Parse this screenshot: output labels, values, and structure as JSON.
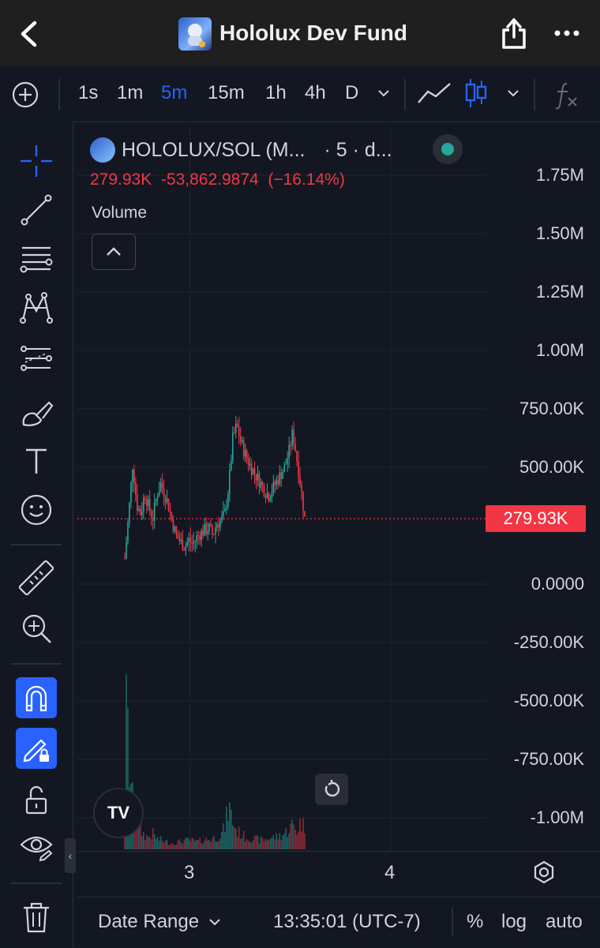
{
  "header": {
    "title": "Hololux Dev Fund",
    "icons": [
      "back-icon",
      "app-logo",
      "share-icon",
      "more-icon"
    ]
  },
  "toolbar": {
    "timeframes": [
      "1s",
      "1m",
      "5m",
      "15m",
      "1h",
      "4h",
      "D"
    ],
    "active_timeframe": "5m",
    "icons": [
      "add-icon",
      "chevron-down-icon",
      "line-chart-icon",
      "candles-icon",
      "chevron-down-icon",
      "fx-icon"
    ]
  },
  "left_tools": [
    "crosshair-icon",
    "trendline-icon",
    "fib-icon",
    "pattern-icon",
    "forecast-icon",
    "brush-icon",
    "text-icon",
    "emoji-icon",
    "ruler-icon",
    "zoom-icon",
    "magnet-icon",
    "lock-drawing-icon",
    "unlock-icon",
    "eye-icon",
    "trash-icon"
  ],
  "legend": {
    "symbol": "HOLOLUX/SOL (M...",
    "interval": "· 5 · d...",
    "price": "279.93K",
    "change": "-53,862.9874",
    "change_pct": "(−16.14%)",
    "volume_label": "Volume"
  },
  "colors": {
    "up": "#26a69a",
    "down": "#f23645",
    "accent": "#2962ff",
    "bg": "#131722"
  },
  "chart_data": {
    "type": "candlestick",
    "price_axis": [
      "1.75M",
      "1.50M",
      "1.25M",
      "1.00M",
      "750.00K",
      "500.00K",
      "0.0000",
      "-250.00K",
      "-500.00K",
      "-750.00K",
      "-1.00M"
    ],
    "time_axis": [
      "3",
      "4"
    ],
    "ylim": [
      -1150000,
      1800000
    ],
    "last_price": 279930,
    "last_price_label": "279.93K",
    "price_path": [
      [
        0,
        110000
      ],
      [
        2,
        300000
      ],
      [
        4,
        520000
      ],
      [
        6,
        340000
      ],
      [
        8,
        300000
      ],
      [
        10,
        390000
      ],
      [
        12,
        330000
      ],
      [
        14,
        280000
      ],
      [
        16,
        380000
      ],
      [
        18,
        430000
      ],
      [
        20,
        390000
      ],
      [
        22,
        330000
      ],
      [
        24,
        260000
      ],
      [
        26,
        200000
      ],
      [
        28,
        180000
      ],
      [
        30,
        160000
      ],
      [
        32,
        190000
      ],
      [
        34,
        170000
      ],
      [
        36,
        200000
      ],
      [
        38,
        220000
      ],
      [
        40,
        230000
      ],
      [
        42,
        240000
      ],
      [
        44,
        210000
      ],
      [
        46,
        260000
      ],
      [
        48,
        270000
      ],
      [
        50,
        300000
      ],
      [
        52,
        420000
      ],
      [
        54,
        620000
      ],
      [
        56,
        680000
      ],
      [
        58,
        610000
      ],
      [
        60,
        560000
      ],
      [
        62,
        520000
      ],
      [
        64,
        490000
      ],
      [
        66,
        460000
      ],
      [
        68,
        430000
      ],
      [
        70,
        400000
      ],
      [
        72,
        380000
      ],
      [
        74,
        410000
      ],
      [
        76,
        440000
      ],
      [
        78,
        470000
      ],
      [
        80,
        500000
      ],
      [
        82,
        560000
      ],
      [
        84,
        650000
      ],
      [
        86,
        540000
      ],
      [
        88,
        420000
      ],
      [
        90,
        279930
      ]
    ],
    "volume_path": [
      [
        0,
        0.38
      ],
      [
        1,
        1.0
      ],
      [
        2,
        0.55
      ],
      [
        3,
        0.45
      ],
      [
        4,
        0.3
      ],
      [
        5,
        0.22
      ],
      [
        6,
        0.18
      ],
      [
        8,
        0.12
      ],
      [
        10,
        0.09
      ],
      [
        12,
        0.08
      ],
      [
        14,
        0.1
      ],
      [
        16,
        0.07
      ],
      [
        18,
        0.06
      ],
      [
        20,
        0.05
      ],
      [
        24,
        0.04
      ],
      [
        28,
        0.05
      ],
      [
        32,
        0.06
      ],
      [
        36,
        0.05
      ],
      [
        40,
        0.06
      ],
      [
        44,
        0.07
      ],
      [
        48,
        0.09
      ],
      [
        50,
        0.14
      ],
      [
        52,
        0.28
      ],
      [
        54,
        0.18
      ],
      [
        56,
        0.12
      ],
      [
        58,
        0.1
      ],
      [
        60,
        0.08
      ],
      [
        64,
        0.07
      ],
      [
        68,
        0.06
      ],
      [
        72,
        0.07
      ],
      [
        76,
        0.08
      ],
      [
        80,
        0.1
      ],
      [
        84,
        0.16
      ],
      [
        86,
        0.12
      ],
      [
        88,
        0.18
      ],
      [
        90,
        0.14
      ]
    ],
    "grid": true
  },
  "time_scale": {
    "settings_icon": "settings-icon"
  },
  "bottom_bar": {
    "date_range": "Date Range",
    "time": "13:35:01 (UTC-7)",
    "options": [
      "%",
      "log",
      "auto"
    ]
  },
  "watermark": "TV"
}
